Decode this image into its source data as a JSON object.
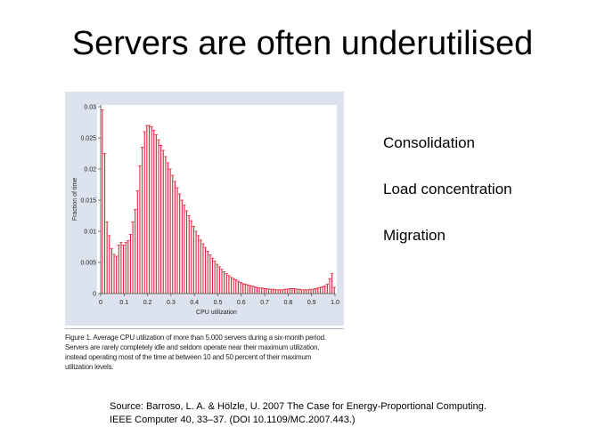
{
  "slide": {
    "title": "Servers are often underutilised",
    "bullets": [
      "Consolidation",
      "Load concentration",
      "Migration"
    ],
    "source_line1": "Source: Barroso, L. A. & Hölzle, U. 2007 The Case for Energy-Proportional Computing.",
    "source_line2": "IEEE Computer 40, 33–37. (DOI 10.1109/MC.2007.443.)",
    "caption_lines": [
      "Figure 1. Average CPU utilization of more than 5,000 servers during a six-month period.",
      "Servers are rarely completely idle and seldom operate near their maximum utilization,",
      "instead operating most of the time at between 10 and 50 percent of their maximum",
      "utilization levels."
    ]
  },
  "chart_data": {
    "type": "bar",
    "xlabel": "CPU utilization",
    "ylabel": "Fraction of time",
    "xlim": [
      0,
      1.0
    ],
    "ylim": [
      0,
      0.03
    ],
    "x_ticks": [
      "0",
      "0.1",
      "0.2",
      "0.3",
      "0.4",
      "0.5",
      "0.6",
      "0.7",
      "0.8",
      "0.9",
      "1.0"
    ],
    "y_ticks": [
      "0",
      "0.005",
      "0.01",
      "0.015",
      "0.02",
      "0.025",
      "0.03"
    ],
    "bar_color": "#e0243a",
    "grid": false,
    "x": [
      0.01,
      0.02,
      0.03,
      0.04,
      0.05,
      0.06,
      0.07,
      0.08,
      0.09,
      0.1,
      0.11,
      0.12,
      0.13,
      0.14,
      0.15,
      0.16,
      0.17,
      0.18,
      0.19,
      0.2,
      0.21,
      0.22,
      0.23,
      0.24,
      0.25,
      0.26,
      0.27,
      0.28,
      0.29,
      0.3,
      0.31,
      0.32,
      0.33,
      0.34,
      0.35,
      0.36,
      0.37,
      0.38,
      0.39,
      0.4,
      0.41,
      0.42,
      0.43,
      0.44,
      0.45,
      0.46,
      0.47,
      0.48,
      0.49,
      0.5,
      0.51,
      0.52,
      0.53,
      0.54,
      0.55,
      0.56,
      0.57,
      0.58,
      0.59,
      0.6,
      0.61,
      0.62,
      0.63,
      0.64,
      0.65,
      0.66,
      0.67,
      0.68,
      0.69,
      0.7,
      0.71,
      0.72,
      0.73,
      0.74,
      0.75,
      0.76,
      0.77,
      0.78,
      0.79,
      0.8,
      0.81,
      0.82,
      0.83,
      0.84,
      0.85,
      0.86,
      0.87,
      0.88,
      0.89,
      0.9,
      0.91,
      0.92,
      0.93,
      0.94,
      0.95,
      0.96,
      0.97,
      0.98,
      0.99,
      1.0
    ],
    "values": [
      0.0295,
      0.0225,
      0.0115,
      0.0093,
      0.0072,
      0.0063,
      0.006,
      0.0078,
      0.0082,
      0.0078,
      0.0082,
      0.0085,
      0.0095,
      0.0115,
      0.0135,
      0.0165,
      0.0205,
      0.0235,
      0.026,
      0.027,
      0.027,
      0.0268,
      0.0262,
      0.0255,
      0.0247,
      0.0238,
      0.023,
      0.022,
      0.021,
      0.02,
      0.019,
      0.018,
      0.017,
      0.016,
      0.015,
      0.0142,
      0.0133,
      0.0125,
      0.0117,
      0.0108,
      0.01,
      0.0093,
      0.0086,
      0.008,
      0.0074,
      0.0068,
      0.0062,
      0.0057,
      0.0052,
      0.0047,
      0.0043,
      0.0039,
      0.0035,
      0.0032,
      0.0029,
      0.0026,
      0.0024,
      0.0022,
      0.002,
      0.0018,
      0.0016,
      0.0015,
      0.0014,
      0.0013,
      0.0012,
      0.0011,
      0.001,
      0.0009,
      0.0009,
      0.0008,
      0.0008,
      0.0007,
      0.0007,
      0.0007,
      0.0006,
      0.0006,
      0.0006,
      0.0006,
      0.0007,
      0.0007,
      0.0008,
      0.0008,
      0.0008,
      0.0007,
      0.0007,
      0.0006,
      0.0006,
      0.0006,
      0.0006,
      0.0007,
      0.0007,
      0.0008,
      0.0009,
      0.001,
      0.0011,
      0.0012,
      0.0015,
      0.0024,
      0.0032,
      0.001
    ]
  }
}
